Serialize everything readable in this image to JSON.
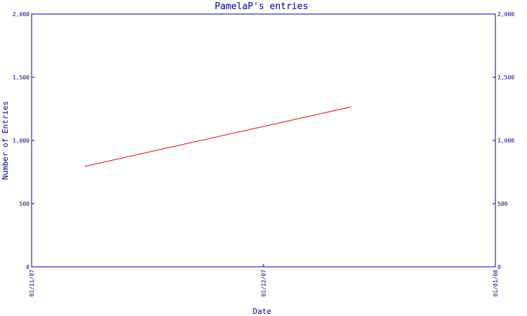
{
  "chart_data": {
    "type": "line",
    "title": "PamelaP's entries",
    "xlabel": "Date",
    "ylabel": "Number of Entries",
    "x_ticks": [
      "01/11/07",
      "01/12/07",
      "01/01/08"
    ],
    "y_ticks": [
      "0",
      "500",
      "1,000",
      "1,500",
      "2,000"
    ],
    "y_tick_values": [
      0,
      500,
      1000,
      1500,
      2000
    ],
    "xlim": [
      "2007-11-01",
      "2008-01-01"
    ],
    "ylim": [
      0,
      2000
    ],
    "grid": false,
    "right_axis_mirrored": true,
    "series": [
      {
        "color": "#dd0000",
        "points": [
          {
            "x": "2007-11-08",
            "y": 795
          },
          {
            "x": "2007-12-13",
            "y": 1265
          }
        ]
      }
    ]
  }
}
